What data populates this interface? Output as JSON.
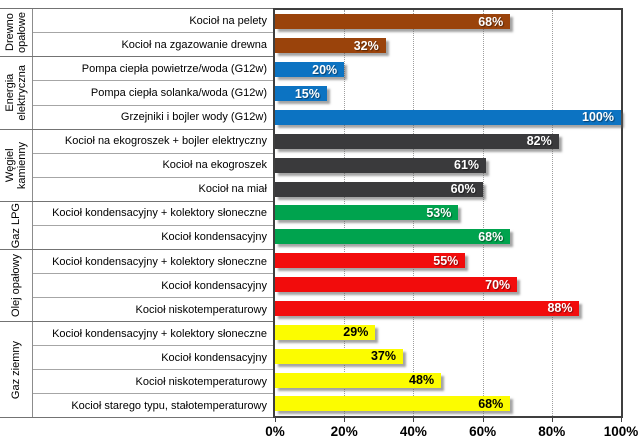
{
  "chart_data": {
    "type": "bar",
    "orientation": "horizontal",
    "title": "",
    "xlabel": "",
    "ylabel": "",
    "xlim": [
      0,
      100
    ],
    "grid": "vertical dotted gridlines at 20/40/60/80",
    "legend": "none",
    "value_suffix": "%",
    "x_ticks": [
      {
        "label": "0%",
        "value": 0
      },
      {
        "label": "20%",
        "value": 20
      },
      {
        "label": "40%",
        "value": 40
      },
      {
        "label": "60%",
        "value": 60
      },
      {
        "label": "80%",
        "value": 80
      },
      {
        "label": "100%",
        "value": 100
      }
    ],
    "groups": [
      {
        "name": "Drewno\nopałowe",
        "color": "#9a430b",
        "value_text": "light",
        "items": [
          {
            "label": "Kocioł na pelety",
            "value": 68
          },
          {
            "label": "Kocioł na zgazowanie drewna",
            "value": 32
          }
        ]
      },
      {
        "name": "Energia\nelektryczna",
        "color": "#0c73c2",
        "value_text": "light",
        "items": [
          {
            "label": "Pompa ciepła powietrze/woda (G12w)",
            "value": 20
          },
          {
            "label": "Pompa ciepła solanka/woda (G12w)",
            "value": 15
          },
          {
            "label": "Grzejniki i bojler wody (G12w)",
            "value": 100
          }
        ]
      },
      {
        "name": "Węgiel\nkamienny",
        "color": "#3a3a3c",
        "value_text": "light",
        "items": [
          {
            "label": "Kocioł na ekogroszek + bojler elektryczny",
            "value": 82
          },
          {
            "label": "Kocioł na ekogroszek",
            "value": 61
          },
          {
            "label": "Kocioł na miał",
            "value": 60
          }
        ]
      },
      {
        "name": "Gaz LPG",
        "color": "#00a34e",
        "value_text": "light",
        "items": [
          {
            "label": "Kocioł kondensacyjny + kolektory słoneczne",
            "value": 53
          },
          {
            "label": "Kocioł kondensacyjny",
            "value": 68
          }
        ]
      },
      {
        "name": "Olej opałowy",
        "color": "#f20c0c",
        "value_text": "light",
        "items": [
          {
            "label": "Kocioł kondensacyjny + kolektory słoneczne",
            "value": 55
          },
          {
            "label": "Kocioł kondensacyjny",
            "value": 70
          },
          {
            "label": "Kocioł niskotemperaturowy",
            "value": 88
          }
        ]
      },
      {
        "name": "Gaz ziemny",
        "color": "#fcfc00",
        "value_text": "dark",
        "items": [
          {
            "label": "Kocioł kondensacyjny + kolektory słoneczne",
            "value": 29
          },
          {
            "label": "Kocioł kondensacyjny",
            "value": 37
          },
          {
            "label": "Kocioł niskotemperaturowy",
            "value": 48
          },
          {
            "label": "Kocioł starego typu, stałotemperaturowy",
            "value": 68
          }
        ]
      }
    ]
  }
}
